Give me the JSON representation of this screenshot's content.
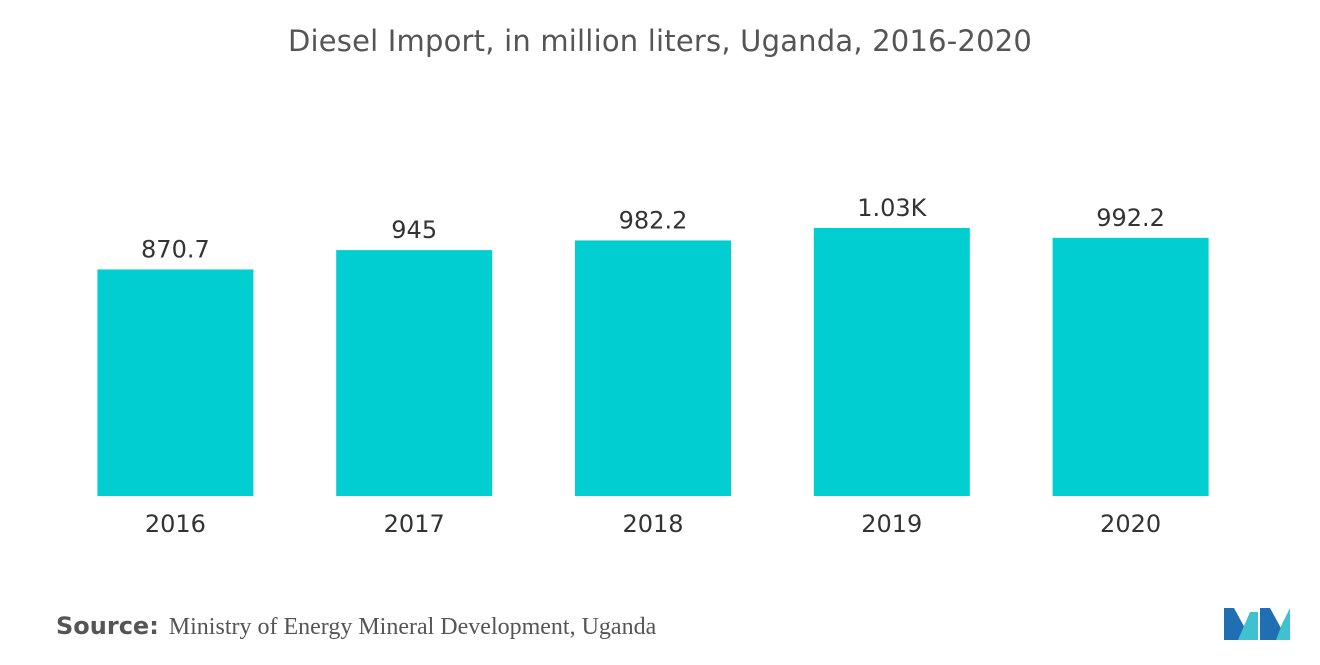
{
  "chart_data": {
    "type": "bar",
    "title": "Diesel Import, in million liters, Uganda, 2016-2020",
    "categories": [
      "2016",
      "2017",
      "2018",
      "2019",
      "2020"
    ],
    "values": [
      870.7,
      945,
      982.2,
      1030,
      992.2
    ],
    "data_labels": [
      "870.7",
      "945",
      "982.2",
      "1.03K",
      "992.2"
    ],
    "xlabel": "",
    "ylabel": "",
    "ylim": [
      0,
      1030
    ],
    "grid": false,
    "legend": "none",
    "bar_color": "#00CED1"
  },
  "footer": {
    "source_key": "Source:",
    "source_value": "Ministry of Energy Mineral Development, Uganda"
  },
  "brand": {
    "logo_icon": "mordor-intelligence-logo-icon",
    "logo_colors": [
      "#1F6FB2",
      "#3FC1D0"
    ]
  }
}
